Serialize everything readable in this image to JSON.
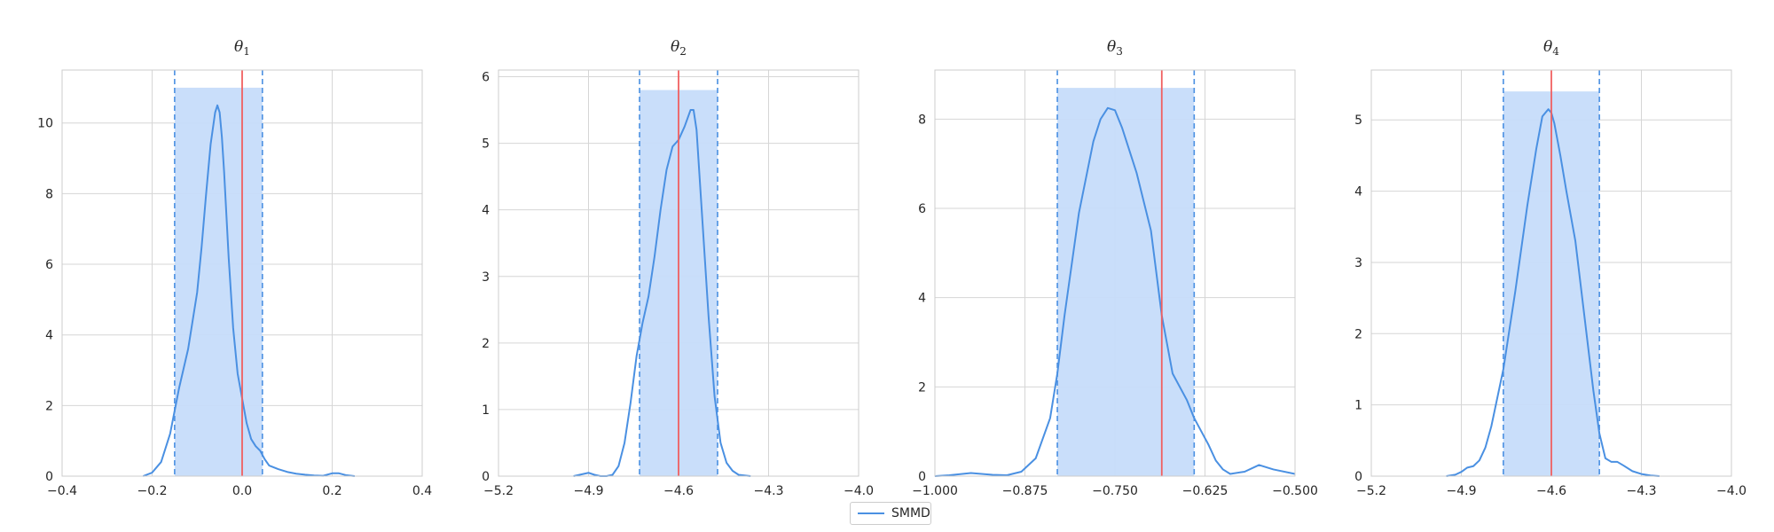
{
  "chart_data": [
    {
      "type": "area",
      "title": "θ",
      "title_sub": "1",
      "xlabel": "",
      "ylabel": "",
      "xlim": [
        -0.4,
        0.4
      ],
      "ylim": [
        0,
        11.5
      ],
      "xticks": [
        -0.4,
        -0.2,
        0.0,
        0.2,
        0.4
      ],
      "xtick_labels": [
        "−0.4",
        "−0.2",
        "0.0",
        "0.2",
        "0.4"
      ],
      "yticks": [
        0,
        2,
        4,
        6,
        8,
        10
      ],
      "ytick_labels": [
        "0",
        "2",
        "4",
        "6",
        "8",
        "10"
      ],
      "true_value": 0.0,
      "interval": [
        -0.15,
        0.045
      ],
      "interval_top": 11.0,
      "series": [
        {
          "name": "SMMD",
          "x": [
            -0.22,
            -0.2,
            -0.18,
            -0.16,
            -0.14,
            -0.12,
            -0.1,
            -0.09,
            -0.08,
            -0.07,
            -0.06,
            -0.055,
            -0.05,
            -0.045,
            -0.04,
            -0.03,
            -0.02,
            -0.01,
            0.0,
            0.01,
            0.02,
            0.03,
            0.04,
            0.05,
            0.06,
            0.08,
            0.1,
            0.12,
            0.14,
            0.16,
            0.18,
            0.2,
            0.215,
            0.23,
            0.25
          ],
          "y": [
            0.0,
            0.1,
            0.4,
            1.2,
            2.5,
            3.6,
            5.2,
            6.5,
            8.0,
            9.4,
            10.3,
            10.5,
            10.3,
            9.6,
            8.6,
            6.2,
            4.2,
            2.9,
            2.2,
            1.5,
            1.05,
            0.85,
            0.72,
            0.48,
            0.3,
            0.2,
            0.12,
            0.07,
            0.04,
            0.02,
            0.01,
            0.08,
            0.08,
            0.03,
            0.0
          ]
        }
      ]
    },
    {
      "type": "area",
      "title": "θ",
      "title_sub": "2",
      "xlabel": "",
      "ylabel": "",
      "xlim": [
        -5.2,
        -4.0
      ],
      "ylim": [
        0,
        6.1
      ],
      "xticks": [
        -5.2,
        -4.9,
        -4.6,
        -4.3,
        -4.0
      ],
      "xtick_labels": [
        "−5.2",
        "−4.9",
        "−4.6",
        "−4.3",
        "−4.0"
      ],
      "yticks": [
        0,
        1,
        2,
        3,
        4,
        5,
        6
      ],
      "ytick_labels": [
        "0",
        "1",
        "2",
        "3",
        "4",
        "5",
        "6"
      ],
      "true_value": -4.6,
      "interval": [
        -4.73,
        -4.47
      ],
      "interval_top": 5.8,
      "series": [
        {
          "name": "SMMD",
          "x": [
            -4.95,
            -4.92,
            -4.9,
            -4.88,
            -4.86,
            -4.84,
            -4.82,
            -4.8,
            -4.78,
            -4.76,
            -4.74,
            -4.72,
            -4.7,
            -4.68,
            -4.66,
            -4.64,
            -4.62,
            -4.6,
            -4.58,
            -4.56,
            -4.55,
            -4.54,
            -4.52,
            -4.5,
            -4.48,
            -4.46,
            -4.44,
            -4.42,
            -4.4,
            -4.38,
            -4.36
          ],
          "y": [
            0.0,
            0.03,
            0.05,
            0.02,
            0.0,
            0.0,
            0.02,
            0.15,
            0.5,
            1.1,
            1.8,
            2.3,
            2.7,
            3.3,
            4.0,
            4.6,
            4.95,
            5.05,
            5.25,
            5.5,
            5.5,
            5.2,
            3.8,
            2.4,
            1.2,
            0.5,
            0.2,
            0.08,
            0.02,
            0.01,
            0.0
          ]
        }
      ]
    },
    {
      "type": "area",
      "title": "θ",
      "title_sub": "3",
      "xlabel": "",
      "ylabel": "",
      "xlim": [
        -1.0,
        -0.5
      ],
      "ylim": [
        0,
        9.1
      ],
      "xticks": [
        -1.0,
        -0.875,
        -0.75,
        -0.625,
        -0.5
      ],
      "xtick_labels": [
        "−1.000",
        "−0.875",
        "−0.750",
        "−0.625",
        "−0.500"
      ],
      "yticks": [
        0,
        2,
        4,
        6,
        8
      ],
      "ytick_labels": [
        "0",
        "2",
        "4",
        "6",
        "8"
      ],
      "true_value": -0.685,
      "interval": [
        -0.83,
        -0.64
      ],
      "interval_top": 8.7,
      "series": [
        {
          "name": "SMMD",
          "x": [
            -1.0,
            -0.98,
            -0.95,
            -0.92,
            -0.9,
            -0.88,
            -0.86,
            -0.84,
            -0.83,
            -0.82,
            -0.8,
            -0.78,
            -0.77,
            -0.76,
            -0.75,
            -0.74,
            -0.72,
            -0.7,
            -0.685,
            -0.67,
            -0.65,
            -0.64,
            -0.63,
            -0.62,
            -0.61,
            -0.6,
            -0.59,
            -0.57,
            -0.55,
            -0.53,
            -0.5
          ],
          "y": [
            0.0,
            0.02,
            0.07,
            0.03,
            0.02,
            0.1,
            0.4,
            1.3,
            2.3,
            3.6,
            5.9,
            7.5,
            8.0,
            8.25,
            8.2,
            7.8,
            6.8,
            5.5,
            3.6,
            2.3,
            1.7,
            1.3,
            1.0,
            0.7,
            0.35,
            0.15,
            0.05,
            0.1,
            0.25,
            0.15,
            0.05
          ]
        }
      ]
    },
    {
      "type": "area",
      "title": "θ",
      "title_sub": "4",
      "xlabel": "",
      "ylabel": "",
      "xlim": [
        -5.2,
        -4.0
      ],
      "ylim": [
        0,
        5.7
      ],
      "xticks": [
        -5.2,
        -4.9,
        -4.6,
        -4.3,
        -4.0
      ],
      "xtick_labels": [
        "−5.2",
        "−4.9",
        "−4.6",
        "−4.3",
        "−4.0"
      ],
      "yticks": [
        0,
        1,
        2,
        3,
        4,
        5
      ],
      "ytick_labels": [
        "0",
        "1",
        "2",
        "3",
        "4",
        "5"
      ],
      "true_value": -4.6,
      "interval": [
        -4.76,
        -4.44
      ],
      "interval_top": 5.4,
      "series": [
        {
          "name": "SMMD",
          "x": [
            -4.95,
            -4.92,
            -4.9,
            -4.88,
            -4.86,
            -4.84,
            -4.82,
            -4.8,
            -4.76,
            -4.72,
            -4.68,
            -4.65,
            -4.63,
            -4.61,
            -4.6,
            -4.59,
            -4.57,
            -4.55,
            -4.52,
            -4.5,
            -4.48,
            -4.46,
            -4.44,
            -4.42,
            -4.4,
            -4.38,
            -4.36,
            -4.33,
            -4.3,
            -4.27,
            -4.24
          ],
          "y": [
            0.0,
            0.02,
            0.06,
            0.12,
            0.14,
            0.22,
            0.4,
            0.7,
            1.5,
            2.6,
            3.8,
            4.6,
            5.05,
            5.15,
            5.1,
            4.95,
            4.5,
            4.0,
            3.3,
            2.6,
            1.9,
            1.2,
            0.6,
            0.25,
            0.2,
            0.2,
            0.15,
            0.07,
            0.03,
            0.01,
            0.0
          ]
        }
      ]
    }
  ],
  "legend": {
    "label": "SMMD"
  },
  "colors": {
    "density": "#4a90e2",
    "interval_fill": "#c6dcfa",
    "interval_edge": "#4a90e2",
    "true_line": "#f06060",
    "grid": "#d6d6d6",
    "spine": "#cccccc",
    "text": "#262626"
  }
}
